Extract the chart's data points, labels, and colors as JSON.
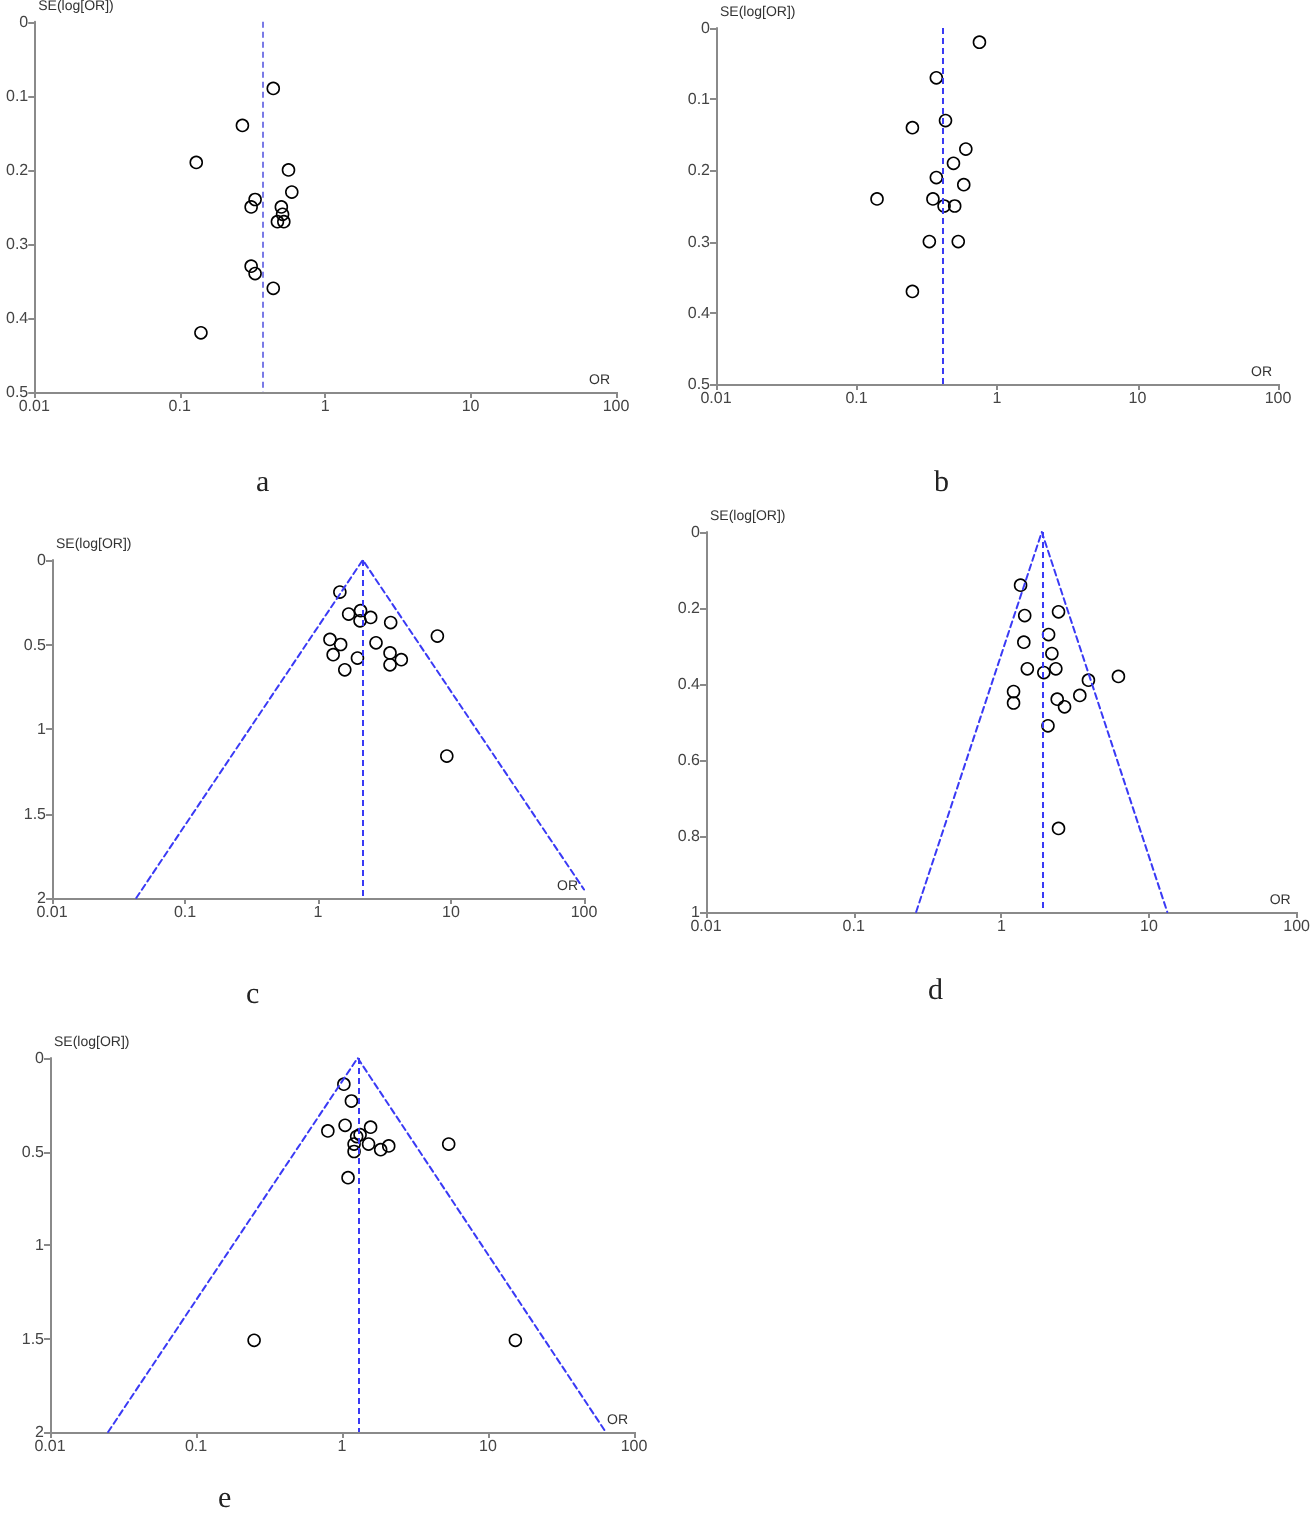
{
  "chart_data": [
    {
      "type": "scatter",
      "title": "a",
      "xlabel": "OR",
      "ylabel": "SE(log[OR])",
      "log": "x",
      "xlim": [
        0.01,
        100
      ],
      "xticks": [
        0.01,
        0.1,
        1,
        10,
        100
      ],
      "ylim": [
        0.5,
        0
      ],
      "yticks": [
        0,
        0.1,
        0.2,
        0.3,
        0.4,
        0.5
      ],
      "marker": "circle",
      "series": [
        {
          "color": "#000000",
          "x": [
            0.44,
            0.27,
            0.13,
            0.56,
            0.59,
            0.33,
            0.31,
            0.5,
            0.51,
            0.47,
            0.52,
            0.31,
            0.33,
            0.44,
            0.14
          ],
          "values": [
            0.09,
            0.14,
            0.19,
            0.2,
            0.23,
            0.24,
            0.25,
            0.25,
            0.26,
            0.27,
            0.27,
            0.33,
            0.34,
            0.36,
            0.42
          ]
        }
      ],
      "ref_lines": [
        {
          "axis": "x",
          "value": 0.37,
          "color": "#7a7ae6",
          "line_style": "dashed"
        }
      ]
    },
    {
      "type": "scatter",
      "title": "b",
      "xlabel": "OR",
      "ylabel": "SE(log[OR])",
      "log": "x",
      "xlim": [
        0.01,
        100
      ],
      "xticks": [
        0.01,
        0.1,
        1,
        10,
        100
      ],
      "ylim": [
        0.5,
        0
      ],
      "yticks": [
        0,
        0.1,
        0.2,
        0.3,
        0.4,
        0.5
      ],
      "marker": "circle",
      "series": [
        {
          "color": "#000000",
          "x": [
            0.75,
            0.37,
            0.43,
            0.25,
            0.6,
            0.49,
            0.37,
            0.58,
            0.14,
            0.35,
            0.42,
            0.5,
            0.33,
            0.53,
            0.25
          ],
          "values": [
            0.02,
            0.07,
            0.13,
            0.14,
            0.17,
            0.19,
            0.21,
            0.22,
            0.24,
            0.24,
            0.25,
            0.25,
            0.3,
            0.3,
            0.37
          ]
        }
      ],
      "ref_lines": [
        {
          "axis": "x",
          "value": 0.41,
          "color": "#3a3af5",
          "line_style": "dashed"
        }
      ]
    },
    {
      "type": "scatter",
      "title": "c",
      "xlabel": "OR",
      "ylabel": "SE(log[OR])",
      "log": "x",
      "xlim": [
        0.01,
        100
      ],
      "xticks": [
        0.01,
        0.1,
        1,
        10,
        100
      ],
      "ylim": [
        2,
        0
      ],
      "yticks": [
        0,
        0.5,
        1,
        1.5,
        2
      ],
      "marker": "circle",
      "series": [
        {
          "color": "#000000",
          "x": [
            1.46,
            2.09,
            1.7,
            2.49,
            2.07,
            3.52,
            7.9,
            1.23,
            1.48,
            2.73,
            3.48,
            1.3,
            1.98,
            4.23,
            3.48,
            1.59,
            9.3
          ],
          "values": [
            0.19,
            0.3,
            0.32,
            0.34,
            0.36,
            0.37,
            0.45,
            0.47,
            0.5,
            0.49,
            0.55,
            0.56,
            0.58,
            0.59,
            0.62,
            0.65,
            1.16
          ]
        },
        {
          "type": "line",
          "color": "#3a3af5",
          "line_style": "dashed",
          "marker": "none",
          "x": [
            0.043,
            2.17,
            100
          ],
          "values": [
            2,
            0,
            1.95
          ]
        }
      ],
      "ref_lines": [
        {
          "axis": "x",
          "value": 2.17,
          "color": "#3a3af5",
          "line_style": "dashed"
        }
      ]
    },
    {
      "type": "scatter",
      "title": "d",
      "xlabel": "OR",
      "ylabel": "SE(log[OR])",
      "log": "x",
      "xlim": [
        0.01,
        100
      ],
      "xticks": [
        0.01,
        0.1,
        1,
        10,
        100
      ],
      "ylim": [
        1,
        0
      ],
      "yticks": [
        0,
        0.2,
        0.4,
        0.6,
        0.8,
        1
      ],
      "marker": "circle",
      "series": [
        {
          "color": "#000000",
          "x": [
            1.35,
            2.44,
            1.44,
            2.09,
            1.42,
            2.2,
            1.5,
            2.34,
            1.94,
            3.89,
            6.21,
            1.21,
            3.4,
            2.39,
            1.21,
            2.68,
            2.07,
            2.44
          ],
          "values": [
            0.14,
            0.21,
            0.22,
            0.27,
            0.29,
            0.32,
            0.36,
            0.36,
            0.37,
            0.39,
            0.38,
            0.42,
            0.43,
            0.44,
            0.45,
            0.46,
            0.51,
            0.78
          ]
        },
        {
          "type": "line",
          "color": "#3a3af5",
          "line_style": "dashed",
          "marker": "none",
          "x": [
            0.265,
            1.88,
            13.3
          ],
          "values": [
            1,
            0,
            1
          ]
        }
      ],
      "ref_lines": [
        {
          "axis": "x",
          "value": 1.88,
          "color": "#3a3af5",
          "line_style": "dashed"
        }
      ]
    },
    {
      "type": "scatter",
      "title": "e",
      "xlabel": "OR",
      "ylabel": "SE(log[OR])",
      "log": "x",
      "xlim": [
        0.01,
        100
      ],
      "xticks": [
        0.01,
        0.1,
        1,
        10,
        100
      ],
      "ylim": [
        2,
        0
      ],
      "yticks": [
        0,
        0.5,
        1,
        1.5,
        2
      ],
      "marker": "circle",
      "series": [
        {
          "color": "#000000",
          "x": [
            1.03,
            1.16,
            1.05,
            1.57,
            0.8,
            1.33,
            1.26,
            1.21,
            1.52,
            5.38,
            2.09,
            1.84,
            1.21,
            1.1,
            0.25,
            15.4
          ],
          "values": [
            0.14,
            0.23,
            0.36,
            0.37,
            0.39,
            0.41,
            0.42,
            0.46,
            0.46,
            0.46,
            0.47,
            0.49,
            0.5,
            0.64,
            1.51,
            1.51
          ]
        },
        {
          "type": "line",
          "color": "#3a3af5",
          "line_style": "dashed",
          "marker": "none",
          "x": [
            0.025,
            1.28,
            64
          ],
          "values": [
            2,
            0,
            2
          ]
        }
      ],
      "ref_lines": [
        {
          "axis": "x",
          "value": 1.28,
          "color": "#3a3af5",
          "line_style": "dashed"
        }
      ]
    }
  ]
}
